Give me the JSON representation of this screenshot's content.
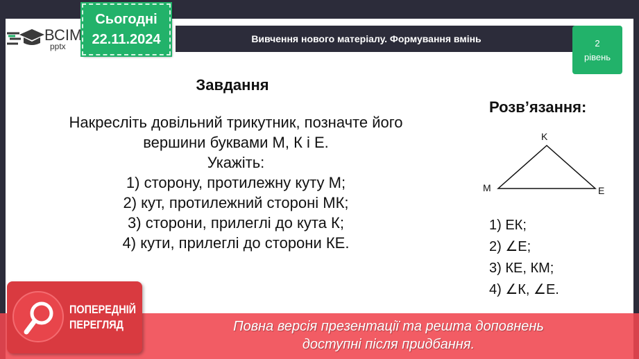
{
  "logo": {
    "brand": "ВСІМ",
    "sub": "pptx"
  },
  "today": {
    "label": "Сьогодні",
    "date": "22.11.2024"
  },
  "header": {
    "title": "Вивчення нового матеріалу.  Формування вмінь"
  },
  "badge": {
    "number": "2",
    "label": "рівень"
  },
  "task": {
    "title": "Завдання",
    "lines": [
      "Накресліть довільний трикутник, позначте його",
      "вершини буквами М, К і Е.",
      "Укажіть:",
      "1) сторону, протилежну куту М;",
      "2) кут, протилежний стороні МК;",
      "3) сторони, прилеглі до кута К;",
      "4) кути, прилеглі до сторони КЕ."
    ]
  },
  "solution": {
    "title": "Розв’язання:",
    "vertices": {
      "m": "M",
      "k": "K",
      "e": "E"
    },
    "answers": [
      "1) ЕК;",
      "2) ∠Е;",
      "3) КЕ, КМ;",
      "4) ∠К, ∠Е."
    ]
  },
  "preview": {
    "label1": "ПОПЕРЕДНІЙ",
    "label2": "ПЕРЕГЛЯД",
    "message1": "Повна версія презентації та решта доповнень",
    "message2": "доступні після придбання."
  },
  "colors": {
    "green": "#22b26a",
    "dark": "#2c2c3a",
    "red": "#d93a40"
  }
}
